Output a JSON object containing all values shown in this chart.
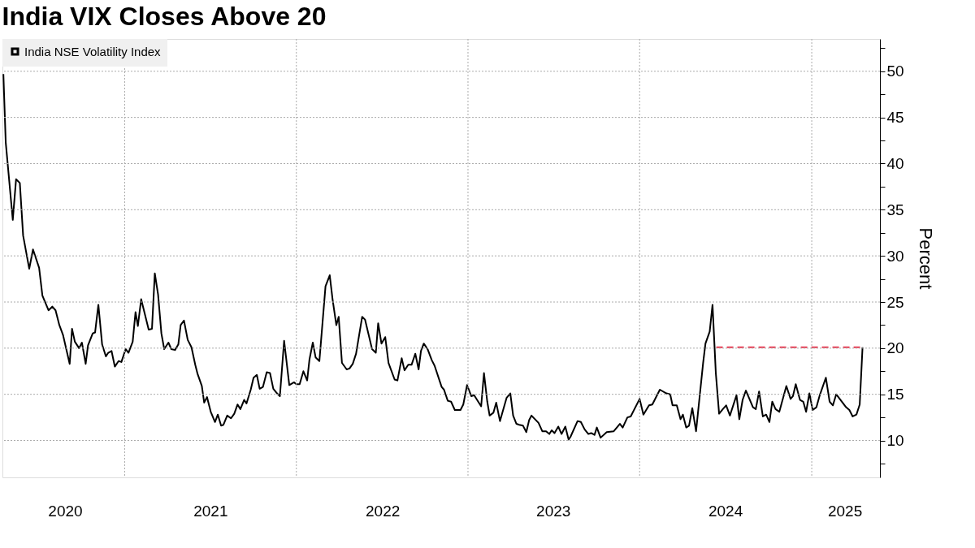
{
  "chart_data": {
    "type": "line",
    "title": "India VIX Closes Above 20",
    "ylabel": "Percent",
    "xlim": [
      "2020-04-16",
      "2025-05-26"
    ],
    "xticks": [
      {
        "value": "2020-08-27",
        "label": "2020"
      },
      {
        "value": "2021-01-01",
        "label": null
      },
      {
        "value": "2021-07-02",
        "label": "2021"
      },
      {
        "value": "2022-01-01",
        "label": null
      },
      {
        "value": "2022-07-03",
        "label": "2022"
      },
      {
        "value": "2023-01-01",
        "label": null
      },
      {
        "value": "2023-07-01",
        "label": "2023"
      },
      {
        "value": "2024-01-01",
        "label": null
      },
      {
        "value": "2024-07-01",
        "label": "2024"
      },
      {
        "value": "2025-01-01",
        "label": null
      },
      {
        "value": "2025-03-12",
        "label": "2025"
      }
    ],
    "ylim": [
      6,
      53.5
    ],
    "yticks": [
      {
        "value": 7.5,
        "label": null
      },
      10,
      {
        "value": 12.5,
        "label": null
      },
      15,
      {
        "value": 17.5,
        "label": null
      },
      20,
      {
        "value": 22.5,
        "label": null
      },
      25,
      {
        "value": 27.5,
        "label": null
      },
      30,
      {
        "value": 32.5,
        "label": null
      },
      35,
      {
        "value": 37.5,
        "label": null
      },
      40,
      {
        "value": 42.5,
        "label": null
      },
      45,
      {
        "value": 47.5,
        "label": null
      },
      50,
      {
        "value": 52.5,
        "label": null
      }
    ],
    "grid": true,
    "legend": "top left",
    "line_style": "solid",
    "series": [
      {
        "name": "India NSE Volatility Index",
        "color": "#000000",
        "x": [
          "2020-04-18",
          "2020-04-23",
          "2020-05-08",
          "2020-05-15",
          "2020-05-23",
          "2020-05-30",
          "2020-06-12",
          "2020-06-20",
          "2020-07-03",
          "2020-07-10",
          "2020-07-23",
          "2020-07-31",
          "2020-08-07",
          "2020-08-15",
          "2020-08-23",
          "2020-09-06",
          "2020-09-11",
          "2020-09-17",
          "2020-09-26",
          "2020-10-02",
          "2020-10-10",
          "2020-10-15",
          "2020-10-25",
          "2020-10-30",
          "2020-11-06",
          "2020-11-14",
          "2020-11-22",
          "2020-11-27",
          "2020-12-04",
          "2020-12-11",
          "2020-12-19",
          "2020-12-25",
          "2021-01-03",
          "2021-01-09",
          "2021-01-18",
          "2021-01-24",
          "2021-01-29",
          "2021-02-05",
          "2021-02-21",
          "2021-02-28",
          "2021-03-06",
          "2021-03-13",
          "2021-03-20",
          "2021-03-26",
          "2021-04-04",
          "2021-04-10",
          "2021-04-18",
          "2021-04-25",
          "2021-04-30",
          "2021-05-07",
          "2021-05-15",
          "2021-05-23",
          "2021-05-31",
          "2021-06-05",
          "2021-06-14",
          "2021-06-19",
          "2021-06-25",
          "2021-07-03",
          "2021-07-12",
          "2021-07-18",
          "2021-07-25",
          "2021-07-30",
          "2021-08-07",
          "2021-08-15",
          "2021-08-22",
          "2021-08-29",
          "2021-09-04",
          "2021-09-12",
          "2021-09-17",
          "2021-09-26",
          "2021-10-02",
          "2021-10-09",
          "2021-10-15",
          "2021-10-22",
          "2021-10-30",
          "2021-11-06",
          "2021-11-13",
          "2021-11-21",
          "2021-11-27",
          "2021-12-06",
          "2021-12-17",
          "2021-12-27",
          "2022-01-01",
          "2022-01-08",
          "2022-01-16",
          "2022-01-24",
          "2022-01-29",
          "2022-02-05",
          "2022-02-11",
          "2022-02-19",
          "2022-03-04",
          "2022-03-13",
          "2022-03-19",
          "2022-03-27",
          "2022-04-01",
          "2022-04-08",
          "2022-04-18",
          "2022-04-24",
          "2022-05-01",
          "2022-05-08",
          "2022-05-21",
          "2022-05-27",
          "2022-06-11",
          "2022-06-19",
          "2022-06-24",
          "2022-07-01",
          "2022-07-09",
          "2022-07-16",
          "2022-07-29",
          "2022-08-04",
          "2022-08-13",
          "2022-08-19",
          "2022-08-27",
          "2022-09-03",
          "2022-09-11",
          "2022-09-18",
          "2022-09-23",
          "2022-09-29",
          "2022-10-07",
          "2022-10-16",
          "2022-10-22",
          "2022-11-06",
          "2022-11-11",
          "2022-11-19",
          "2022-11-26",
          "2022-12-04",
          "2022-12-16",
          "2022-12-22",
          "2022-12-30",
          "2023-01-08",
          "2023-01-14",
          "2023-01-29",
          "2023-02-04",
          "2023-02-11",
          "2023-02-16",
          "2023-02-24",
          "2023-03-02",
          "2023-03-10",
          "2023-03-24",
          "2023-04-01",
          "2023-04-07",
          "2023-04-14",
          "2023-04-20",
          "2023-04-28",
          "2023-05-05",
          "2023-05-11",
          "2023-05-16",
          "2023-05-31",
          "2023-06-08",
          "2023-06-16",
          "2023-06-23",
          "2023-06-28",
          "2023-07-04",
          "2023-07-12",
          "2023-07-19",
          "2023-07-27",
          "2023-08-03",
          "2023-08-07",
          "2023-08-22",
          "2023-08-29",
          "2023-09-06",
          "2023-09-14",
          "2023-09-20",
          "2023-09-27",
          "2023-10-02",
          "2023-10-10",
          "2023-10-23",
          "2023-11-07",
          "2023-11-20",
          "2023-11-26",
          "2023-12-06",
          "2023-12-13",
          "2024-01-01",
          "2024-01-09",
          "2024-01-21",
          "2024-01-28",
          "2024-02-13",
          "2024-02-27",
          "2024-03-06",
          "2024-03-11",
          "2024-03-20",
          "2024-03-28",
          "2024-04-02",
          "2024-04-09",
          "2024-04-15",
          "2024-04-22",
          "2024-04-30",
          "2024-05-15",
          "2024-05-20",
          "2024-05-29",
          "2024-06-04",
          "2024-06-11",
          "2024-06-18",
          "2024-06-26",
          "2024-07-03",
          "2024-07-11",
          "2024-07-25",
          "2024-07-31",
          "2024-08-07",
          "2024-08-14",
          "2024-08-29",
          "2024-09-04",
          "2024-09-11",
          "2024-09-19",
          "2024-09-26",
          "2024-10-03",
          "2024-10-09",
          "2024-10-16",
          "2024-10-24",
          "2024-11-08",
          "2024-11-17",
          "2024-11-22",
          "2024-11-28",
          "2024-12-07",
          "2024-12-14",
          "2024-12-20",
          "2024-12-27",
          "2025-01-03",
          "2025-01-11",
          "2025-01-18",
          "2025-01-31",
          "2025-02-08",
          "2025-02-15",
          "2025-02-22",
          "2025-03-15",
          "2025-03-22",
          "2025-03-29",
          "2025-04-06",
          "2025-04-13",
          "2025-04-19"
        ],
        "values": [
          49.7,
          42.3,
          33.9,
          38.3,
          37.9,
          32.2,
          28.6,
          30.7,
          28.7,
          25.7,
          24.1,
          24.5,
          24.1,
          22.5,
          21.4,
          18.3,
          22.1,
          20.7,
          20.0,
          20.6,
          18.3,
          20.3,
          21.6,
          21.7,
          24.7,
          20.4,
          19.1,
          19.5,
          19.7,
          18.0,
          18.6,
          18.5,
          19.9,
          19.5,
          20.7,
          23.9,
          22.4,
          25.3,
          22.0,
          22.1,
          28.1,
          25.8,
          21.6,
          19.9,
          20.6,
          19.9,
          19.8,
          20.4,
          22.5,
          23.0,
          20.9,
          20.1,
          18.2,
          17.2,
          15.9,
          14.1,
          14.7,
          13.1,
          12.0,
          12.8,
          11.6,
          11.7,
          12.7,
          12.4,
          12.9,
          13.9,
          13.4,
          14.4,
          14.0,
          15.5,
          16.8,
          17.1,
          15.6,
          15.8,
          17.4,
          17.3,
          15.6,
          15.1,
          14.8,
          20.8,
          16.0,
          16.3,
          16.1,
          16.1,
          17.5,
          16.5,
          18.8,
          20.6,
          19.0,
          18.6,
          26.7,
          27.9,
          25.3,
          22.5,
          23.4,
          18.4,
          17.7,
          17.8,
          18.3,
          19.4,
          23.4,
          23.1,
          19.9,
          19.5,
          22.7,
          20.5,
          21.2,
          18.4,
          16.6,
          16.5,
          18.9,
          17.6,
          18.2,
          18.2,
          19.4,
          17.7,
          19.7,
          20.5,
          19.9,
          18.7,
          18.1,
          15.8,
          15.5,
          14.3,
          14.2,
          13.3,
          13.3,
          13.9,
          16.0,
          14.8,
          14.9,
          13.7,
          17.3,
          14.2,
          12.7,
          13.0,
          14.1,
          12.1,
          14.6,
          15.1,
          12.7,
          11.8,
          11.7,
          11.6,
          10.9,
          12.2,
          12.7,
          11.9,
          11.0,
          11.0,
          10.7,
          11.1,
          10.8,
          11.5,
          10.7,
          11.5,
          10.1,
          10.4,
          12.1,
          12.0,
          11.2,
          10.7,
          10.8,
          10.6,
          11.4,
          10.3,
          10.9,
          11.0,
          11.8,
          11.4,
          12.5,
          12.6,
          14.5,
          12.8,
          13.8,
          13.9,
          15.5,
          15.1,
          15.0,
          13.8,
          13.8,
          12.3,
          12.8,
          11.4,
          11.6,
          13.5,
          11.0,
          18.4,
          20.5,
          21.8,
          24.7,
          17.3,
          12.9,
          13.4,
          13.8,
          12.7,
          14.9,
          12.3,
          14.4,
          15.4,
          13.6,
          13.4,
          15.3,
          12.6,
          12.8,
          12.0,
          14.2,
          13.4,
          13.1,
          15.9,
          14.5,
          14.8,
          16.1,
          14.4,
          14.2,
          13.1,
          15.1,
          13.3,
          13.6,
          14.9,
          16.8,
          14.2,
          13.8,
          15.0,
          13.6,
          13.3,
          12.6,
          12.8,
          13.9,
          20.1
        ]
      },
      {
        "color": "#e8374f",
        "line_style": "dashed",
        "x": [
          "2024-06-12",
          "2025-04-19"
        ],
        "values": [
          20.1,
          20.1
        ]
      }
    ]
  }
}
